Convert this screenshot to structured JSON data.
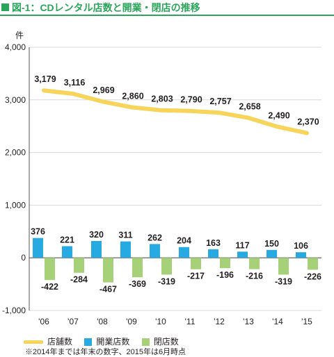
{
  "header": {
    "title": "図-1：CDレンタル店数と開業・閉店の推移",
    "accent_color": "#2aa55a"
  },
  "chart_data": {
    "type": "bar",
    "unit_label": "件",
    "categories": [
      "'06",
      "'07",
      "'08",
      "'09",
      "'10",
      "'11",
      "'12",
      "'13",
      "'14",
      "'15"
    ],
    "ylim": [
      -1000,
      4000
    ],
    "yticks": [
      4000,
      3000,
      2000,
      1000,
      0,
      -1000
    ],
    "ytick_labels": [
      "4,000",
      "3,000",
      "2,000",
      "1,000",
      "0",
      "-1,000"
    ],
    "grid": true,
    "legend_position": "bottom-left",
    "series": [
      {
        "name": "店舗数",
        "kind": "line",
        "color": "#f7d55b",
        "values": [
          3179,
          3116,
          2969,
          2860,
          2803,
          2790,
          2757,
          2658,
          2490,
          2370
        ],
        "labels": [
          "3,179",
          "3,116",
          "2,969",
          "2,860",
          "2,803",
          "2,790",
          "2,757",
          "2,658",
          "2,490",
          "2,370"
        ]
      },
      {
        "name": "開業店数",
        "kind": "bar",
        "color": "#27a9e1",
        "values": [
          376,
          221,
          320,
          311,
          262,
          204,
          163,
          117,
          150,
          106
        ],
        "labels": [
          "376",
          "221",
          "320",
          "311",
          "262",
          "204",
          "163",
          "117",
          "150",
          "106"
        ]
      },
      {
        "name": "閉店数",
        "kind": "bar",
        "color": "#a6d178",
        "values": [
          -422,
          -284,
          -467,
          -369,
          -319,
          -217,
          -196,
          -216,
          -319,
          -226
        ],
        "labels": [
          "-422",
          "-284",
          "-467",
          "-369",
          "-319",
          "-217",
          "-196",
          "-216",
          "-319",
          "-226"
        ]
      }
    ],
    "footnote": "※2014年までは年末の数字、2015年は6月時点"
  }
}
